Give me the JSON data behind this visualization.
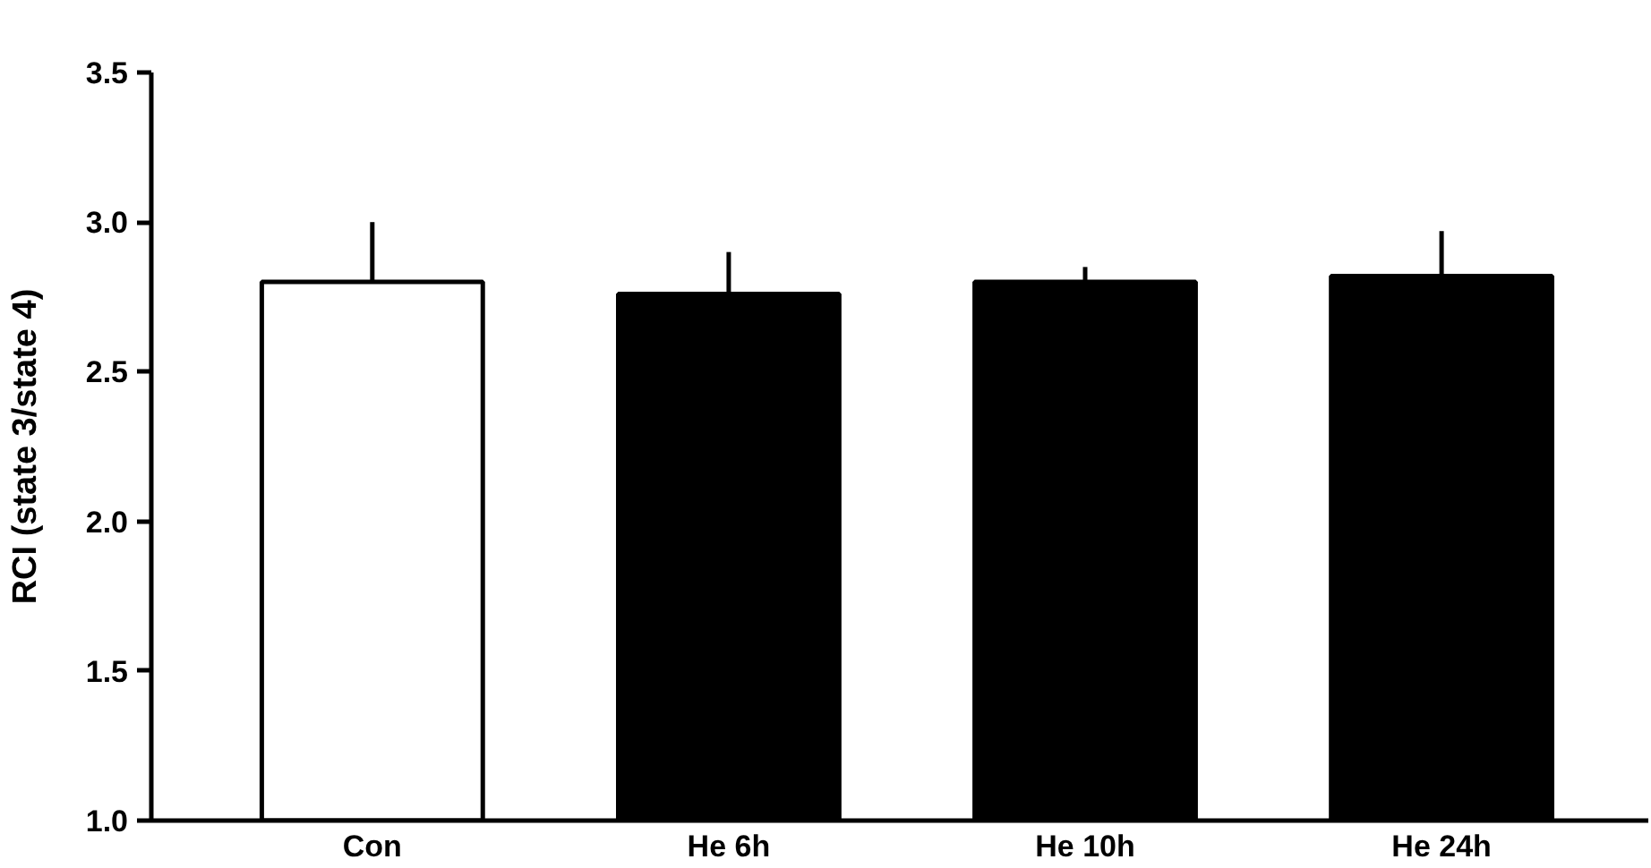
{
  "chart_data": {
    "type": "bar",
    "ylabel": "RCI (state 3/state 4)",
    "categories": [
      "Con",
      "He 6h",
      "He 10h",
      "He 24h"
    ],
    "values": [
      2.8,
      2.76,
      2.8,
      2.82
    ],
    "colors": [
      "#ffffff",
      "#000000",
      "#000000",
      "#000000"
    ],
    "errors": [
      [
        2.8,
        3.0
      ],
      [
        2.76,
        2.9
      ],
      [
        2.8,
        2.85
      ],
      [
        2.82,
        2.97
      ]
    ],
    "ylim": [
      1.0,
      3.5
    ],
    "yticks": [
      {
        "value": 1.0,
        "label": "1.0"
      },
      {
        "value": 1.5,
        "label": "1.5"
      },
      {
        "value": 2.0,
        "label": "2.0"
      },
      {
        "value": 2.5,
        "label": "2.5"
      },
      {
        "value": 3.0,
        "label": "3.0"
      },
      {
        "value": 3.5,
        "label": "3.5"
      }
    ],
    "grid": false
  }
}
